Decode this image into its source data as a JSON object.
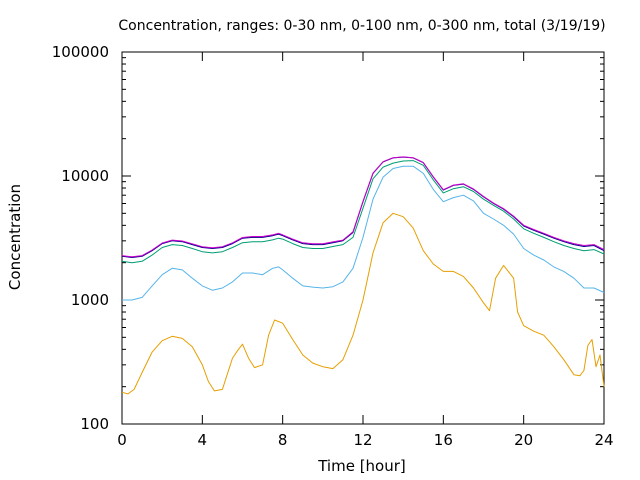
{
  "chart_data": {
    "type": "line",
    "title": "Concentration, ranges: 0-30 nm, 0-100 nm, 0-300 nm, total (3/19/19)",
    "xlabel": "Time [hour]",
    "ylabel": "Concentration",
    "xlim": [
      0,
      24
    ],
    "ylim": [
      100,
      100000
    ],
    "yscale": "log",
    "grid": false,
    "legend": "none",
    "x_ticks": [
      0,
      4,
      8,
      12,
      16,
      20,
      24
    ],
    "y_ticks": [
      100,
      1000,
      10000,
      100000
    ],
    "x_tick_labels": [
      "0",
      "4",
      "8",
      "12",
      "16",
      "20",
      "24"
    ],
    "y_tick_labels": [
      "100",
      "1000",
      "10000",
      "100000"
    ],
    "series": [
      {
        "color": "#e69f00",
        "x": [
          0,
          0.3,
          0.6,
          1.0,
          1.5,
          2.0,
          2.5,
          3.0,
          3.5,
          4.0,
          4.3,
          4.6,
          5.0,
          5.5,
          5.8,
          6.0,
          6.3,
          6.6,
          7.0,
          7.3,
          7.6,
          8.0,
          8.5,
          9.0,
          9.5,
          10.0,
          10.5,
          11.0,
          11.5,
          12.0,
          12.5,
          13.0,
          13.5,
          14.0,
          14.5,
          15.0,
          15.5,
          16.0,
          16.5,
          17.0,
          17.5,
          18.0,
          18.3,
          18.6,
          19.0,
          19.5,
          19.7,
          20.0,
          20.5,
          21.0,
          21.5,
          22.0,
          22.5,
          22.8,
          23.0,
          23.2,
          23.4,
          23.6,
          23.8,
          24.0
        ],
        "values": [
          180,
          175,
          190,
          260,
          380,
          470,
          510,
          490,
          420,
          300,
          220,
          185,
          190,
          340,
          400,
          440,
          340,
          285,
          300,
          520,
          690,
          650,
          480,
          360,
          310,
          290,
          280,
          330,
          520,
          1000,
          2400,
          4200,
          5000,
          4700,
          3800,
          2500,
          1950,
          1700,
          1700,
          1550,
          1250,
          950,
          820,
          1500,
          1900,
          1500,
          800,
          620,
          560,
          520,
          420,
          330,
          250,
          245,
          270,
          430,
          480,
          290,
          360,
          200
        ]
      },
      {
        "color": "#56b4e9",
        "x": [
          0,
          0.5,
          1.0,
          1.5,
          2.0,
          2.5,
          3.0,
          3.5,
          4.0,
          4.5,
          5.0,
          5.5,
          6.0,
          6.5,
          7.0,
          7.5,
          7.8,
          8.0,
          8.5,
          9.0,
          9.5,
          10.0,
          10.5,
          11.0,
          11.5,
          12.0,
          12.5,
          13.0,
          13.5,
          14.0,
          14.5,
          15.0,
          15.5,
          16.0,
          16.5,
          17.0,
          17.5,
          18.0,
          18.5,
          19.0,
          19.5,
          20.0,
          20.5,
          21.0,
          21.5,
          22.0,
          22.5,
          23.0,
          23.5,
          24.0
        ],
        "values": [
          1000,
          1000,
          1050,
          1300,
          1600,
          1800,
          1750,
          1500,
          1300,
          1200,
          1250,
          1400,
          1650,
          1650,
          1600,
          1800,
          1850,
          1750,
          1500,
          1300,
          1270,
          1250,
          1280,
          1400,
          1800,
          3200,
          6500,
          9800,
          11500,
          12000,
          12000,
          10500,
          7800,
          6200,
          6700,
          7000,
          6300,
          5000,
          4500,
          4000,
          3400,
          2600,
          2300,
          2100,
          1850,
          1700,
          1500,
          1250,
          1250,
          1150
        ]
      },
      {
        "color": "#009e73",
        "x": [
          0,
          0.5,
          1.0,
          1.5,
          2.0,
          2.5,
          3.0,
          3.5,
          4.0,
          4.5,
          5.0,
          5.5,
          6.0,
          6.5,
          7.0,
          7.5,
          7.8,
          8.0,
          8.5,
          9.0,
          9.5,
          10.0,
          10.5,
          11.0,
          11.5,
          12.0,
          12.5,
          13.0,
          13.5,
          14.0,
          14.5,
          15.0,
          15.5,
          16.0,
          16.5,
          17.0,
          17.5,
          18.0,
          18.5,
          19.0,
          19.5,
          20.0,
          20.5,
          21.0,
          21.5,
          22.0,
          22.5,
          23.0,
          23.5,
          24.0
        ],
        "values": [
          2050,
          2000,
          2050,
          2300,
          2650,
          2800,
          2750,
          2600,
          2450,
          2400,
          2450,
          2650,
          2900,
          2950,
          2950,
          3050,
          3150,
          3100,
          2850,
          2650,
          2600,
          2600,
          2700,
          2800,
          3200,
          5500,
          9500,
          11800,
          12700,
          13200,
          13300,
          12200,
          9300,
          7300,
          7900,
          8200,
          7500,
          6500,
          5800,
          5200,
          4500,
          3750,
          3450,
          3200,
          2950,
          2750,
          2600,
          2500,
          2550,
          2350
        ]
      },
      {
        "color": "#00008b",
        "x": [
          0,
          0.5,
          1.0,
          1.5,
          2.0,
          2.5,
          3.0,
          3.5,
          4.0,
          4.5,
          5.0,
          5.5,
          6.0,
          6.5,
          7.0,
          7.5,
          7.8,
          8.0,
          8.5,
          9.0,
          9.5,
          10.0,
          10.5,
          11.0,
          11.5,
          12.0,
          12.5,
          13.0,
          13.5,
          14.0,
          14.5,
          15.0,
          15.5,
          16.0,
          16.5,
          17.0,
          17.5,
          18.0,
          18.5,
          19.0,
          19.5,
          20.0,
          20.5,
          21.0,
          21.5,
          22.0,
          22.5,
          23.0,
          23.5,
          24.0
        ],
        "values": [
          2250,
          2200,
          2250,
          2500,
          2850,
          3000,
          2950,
          2800,
          2650,
          2600,
          2650,
          2850,
          3150,
          3200,
          3200,
          3300,
          3400,
          3300,
          3050,
          2850,
          2800,
          2800,
          2900,
          3000,
          3500,
          6200,
          10500,
          13000,
          14000,
          14200,
          14000,
          12800,
          9800,
          7700,
          8400,
          8600,
          7800,
          6800,
          6000,
          5400,
          4700,
          3950,
          3650,
          3400,
          3150,
          2950,
          2800,
          2700,
          2750,
          2500
        ]
      },
      {
        "color": "#cc00cc",
        "x": [
          0,
          0.5,
          1.0,
          1.5,
          2.0,
          2.5,
          3.0,
          3.5,
          4.0,
          4.5,
          5.0,
          5.5,
          6.0,
          6.5,
          7.0,
          7.5,
          7.8,
          8.0,
          8.5,
          9.0,
          9.5,
          10.0,
          10.5,
          11.0,
          11.5,
          12.0,
          12.5,
          13.0,
          13.5,
          14.0,
          14.5,
          15.0,
          15.5,
          16.0,
          16.5,
          17.0,
          17.5,
          18.0,
          18.5,
          19.0,
          19.5,
          20.0,
          20.5,
          21.0,
          21.5,
          22.0,
          22.5,
          23.0,
          23.5,
          24.0
        ],
        "values": [
          2280,
          2230,
          2280,
          2530,
          2880,
          3040,
          2990,
          2840,
          2690,
          2640,
          2690,
          2890,
          3190,
          3250,
          3250,
          3350,
          3450,
          3350,
          3100,
          2890,
          2840,
          2840,
          2940,
          3040,
          3550,
          6250,
          10550,
          13050,
          14050,
          14250,
          14050,
          12850,
          9850,
          7750,
          8450,
          8650,
          7850,
          6850,
          6050,
          5450,
          4750,
          4000,
          3700,
          3450,
          3200,
          3000,
          2850,
          2750,
          2800,
          2550
        ]
      }
    ]
  }
}
